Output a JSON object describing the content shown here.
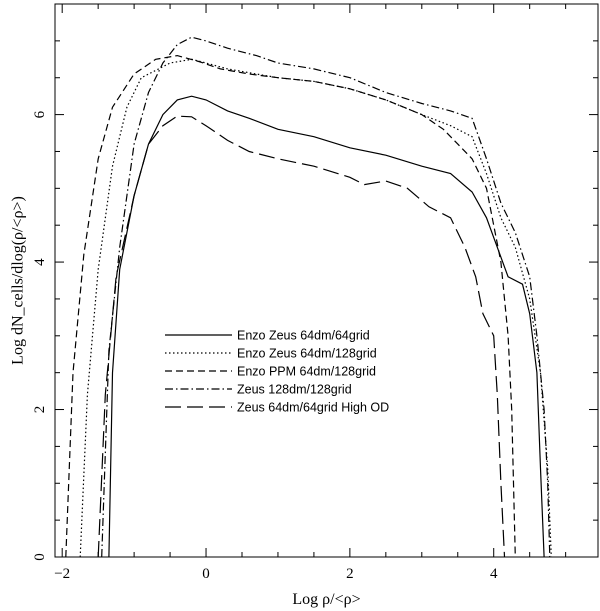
{
  "chart_data": {
    "type": "line",
    "xlabel": "Log ρ/<ρ>",
    "ylabel": "Log dN_cells/dlog(ρ/<ρ>)",
    "xlim": [
      -2.1,
      5.45
    ],
    "ylim": [
      0,
      7.5
    ],
    "xticks": [
      -2,
      0,
      2,
      4
    ],
    "yticks": [
      0,
      2,
      4,
      6
    ],
    "legend_position": "center-left",
    "series": [
      {
        "name": "Enzo Zeus 64dm/64grid",
        "dash": "solid",
        "points": [
          [
            -1.35,
            0
          ],
          [
            -1.3,
            2.5
          ],
          [
            -1.2,
            3.9
          ],
          [
            -1.0,
            4.9
          ],
          [
            -0.8,
            5.6
          ],
          [
            -0.6,
            6.0
          ],
          [
            -0.4,
            6.2
          ],
          [
            -0.2,
            6.25
          ],
          [
            0,
            6.2
          ],
          [
            0.3,
            6.05
          ],
          [
            0.6,
            5.95
          ],
          [
            1.0,
            5.8
          ],
          [
            1.5,
            5.7
          ],
          [
            2.0,
            5.55
          ],
          [
            2.5,
            5.45
          ],
          [
            3.0,
            5.3
          ],
          [
            3.4,
            5.2
          ],
          [
            3.7,
            4.95
          ],
          [
            3.9,
            4.6
          ],
          [
            4.05,
            4.2
          ],
          [
            4.2,
            3.8
          ],
          [
            4.4,
            3.7
          ],
          [
            4.5,
            3.3
          ],
          [
            4.6,
            2.5
          ],
          [
            4.65,
            1.2
          ],
          [
            4.7,
            0
          ]
        ]
      },
      {
        "name": "Enzo Zeus 64dm/128grid",
        "dash": "dotted",
        "points": [
          [
            -1.75,
            0
          ],
          [
            -1.65,
            2.2
          ],
          [
            -1.5,
            3.9
          ],
          [
            -1.3,
            5.3
          ],
          [
            -1.1,
            6.1
          ],
          [
            -0.9,
            6.5
          ],
          [
            -0.7,
            6.6
          ],
          [
            -0.5,
            6.7
          ],
          [
            -0.2,
            6.75
          ],
          [
            0,
            6.7
          ],
          [
            0.3,
            6.62
          ],
          [
            0.7,
            6.55
          ],
          [
            1.0,
            6.5
          ],
          [
            1.5,
            6.45
          ],
          [
            2.0,
            6.35
          ],
          [
            2.5,
            6.2
          ],
          [
            3.0,
            6.0
          ],
          [
            3.4,
            5.85
          ],
          [
            3.7,
            5.7
          ],
          [
            3.9,
            5.2
          ],
          [
            4.1,
            4.6
          ],
          [
            4.3,
            4.2
          ],
          [
            4.5,
            3.5
          ],
          [
            4.65,
            2.5
          ],
          [
            4.75,
            1.2
          ],
          [
            4.8,
            0
          ]
        ]
      },
      {
        "name": "Enzo PPM 64dm/128grid",
        "dash": "dashed",
        "points": [
          [
            -1.95,
            0
          ],
          [
            -1.85,
            2.5
          ],
          [
            -1.7,
            4.1
          ],
          [
            -1.5,
            5.4
          ],
          [
            -1.3,
            6.1
          ],
          [
            -1.0,
            6.55
          ],
          [
            -0.7,
            6.75
          ],
          [
            -0.4,
            6.8
          ],
          [
            -0.1,
            6.72
          ],
          [
            0.2,
            6.62
          ],
          [
            0.6,
            6.55
          ],
          [
            1.0,
            6.5
          ],
          [
            1.5,
            6.45
          ],
          [
            2.0,
            6.35
          ],
          [
            2.5,
            6.2
          ],
          [
            3.0,
            6.0
          ],
          [
            3.3,
            5.8
          ],
          [
            3.5,
            5.6
          ],
          [
            3.7,
            5.4
          ],
          [
            3.9,
            5.0
          ],
          [
            4.0,
            4.5
          ],
          [
            4.1,
            4.0
          ],
          [
            4.2,
            3.0
          ],
          [
            4.25,
            2.0
          ],
          [
            4.3,
            0
          ]
        ]
      },
      {
        "name": "Zeus 128dm/128grid",
        "dash": "dashdot",
        "points": [
          [
            -1.45,
            0
          ],
          [
            -1.35,
            2.8
          ],
          [
            -1.2,
            4.2
          ],
          [
            -1.0,
            5.6
          ],
          [
            -0.8,
            6.3
          ],
          [
            -0.6,
            6.7
          ],
          [
            -0.4,
            6.95
          ],
          [
            -0.2,
            7.05
          ],
          [
            0,
            7.0
          ],
          [
            0.3,
            6.9
          ],
          [
            0.7,
            6.8
          ],
          [
            1.0,
            6.7
          ],
          [
            1.5,
            6.62
          ],
          [
            2.0,
            6.5
          ],
          [
            2.5,
            6.3
          ],
          [
            3.0,
            6.15
          ],
          [
            3.4,
            6.05
          ],
          [
            3.7,
            5.95
          ],
          [
            3.9,
            5.4
          ],
          [
            4.1,
            4.8
          ],
          [
            4.3,
            4.4
          ],
          [
            4.5,
            3.8
          ],
          [
            4.6,
            3.0
          ],
          [
            4.7,
            2.0
          ],
          [
            4.75,
            1.0
          ],
          [
            4.78,
            0
          ]
        ]
      },
      {
        "name": "Zeus 64dm/64grid High OD",
        "dash": "longdash",
        "points": [
          [
            -1.5,
            0
          ],
          [
            -1.4,
            2.2
          ],
          [
            -1.25,
            3.8
          ],
          [
            -1.0,
            4.9
          ],
          [
            -0.8,
            5.6
          ],
          [
            -0.6,
            5.85
          ],
          [
            -0.4,
            5.98
          ],
          [
            -0.2,
            5.97
          ],
          [
            0,
            5.85
          ],
          [
            0.3,
            5.65
          ],
          [
            0.6,
            5.5
          ],
          [
            1.0,
            5.4
          ],
          [
            1.5,
            5.3
          ],
          [
            2.0,
            5.15
          ],
          [
            2.2,
            5.05
          ],
          [
            2.5,
            5.1
          ],
          [
            2.8,
            5.0
          ],
          [
            3.1,
            4.75
          ],
          [
            3.4,
            4.6
          ],
          [
            3.6,
            4.2
          ],
          [
            3.75,
            3.8
          ],
          [
            3.85,
            3.3
          ],
          [
            4.0,
            3.0
          ],
          [
            4.05,
            2.2
          ],
          [
            4.1,
            1.0
          ],
          [
            4.15,
            0
          ]
        ]
      }
    ]
  }
}
